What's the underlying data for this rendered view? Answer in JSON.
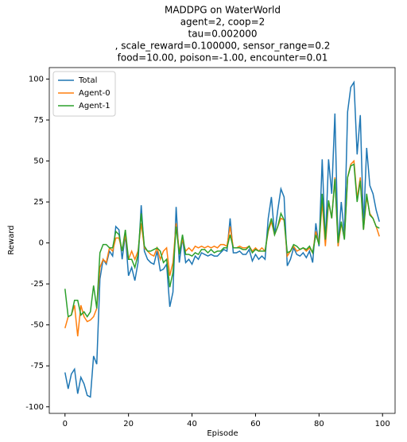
{
  "chart_data": {
    "type": "line",
    "title": [
      "MADDPG on WaterWorld",
      "agent=2, coop=2",
      "tau=0.002000",
      ", scale_reward=0.100000, sensor_range=0.2",
      "food=10.00, poison=-1.00, encounter=0.01"
    ],
    "xlabel": "Episode",
    "ylabel": "Reward",
    "x": [
      0,
      1,
      2,
      3,
      4,
      5,
      6,
      7,
      8,
      9,
      10,
      11,
      12,
      13,
      14,
      15,
      16,
      17,
      18,
      19,
      20,
      21,
      22,
      23,
      24,
      25,
      26,
      27,
      28,
      29,
      30,
      31,
      32,
      33,
      34,
      35,
      36,
      37,
      38,
      39,
      40,
      41,
      42,
      43,
      44,
      45,
      46,
      47,
      48,
      49,
      50,
      51,
      52,
      53,
      54,
      55,
      56,
      57,
      58,
      59,
      60,
      61,
      62,
      63,
      64,
      65,
      66,
      67,
      68,
      69,
      70,
      71,
      72,
      73,
      74,
      75,
      76,
      77,
      78,
      79,
      80,
      81,
      82,
      83,
      84,
      85,
      86,
      87,
      88,
      89,
      90,
      91,
      92,
      93,
      94,
      95,
      96,
      97,
      98,
      99
    ],
    "series": [
      {
        "name": "Total",
        "color": "#1f77b4",
        "values": [
          -79,
          -89,
          -80,
          -77,
          -92,
          -82,
          -86,
          -93,
          -94,
          -69,
          -74,
          -22,
          -10,
          -13,
          -5,
          -8,
          10,
          8,
          -10,
          5,
          -20,
          -15,
          -23,
          -12,
          23,
          -5,
          -10,
          -12,
          -13,
          -5,
          -17,
          -16,
          -13,
          -39,
          -30,
          22,
          -12,
          3,
          -12,
          -10,
          -13,
          -8,
          -10,
          -6,
          -7,
          -8,
          -7,
          -8,
          -8,
          -6,
          -4,
          -5,
          15,
          -6,
          -6,
          -5,
          -7,
          -7,
          -4,
          -11,
          -7,
          -10,
          -8,
          -10,
          15,
          28,
          5,
          20,
          33,
          28,
          -14,
          -10,
          -3,
          -7,
          -8,
          -6,
          -9,
          -5,
          -12,
          12,
          -2,
          51,
          0,
          51,
          30,
          79,
          -2,
          25,
          5,
          80,
          95,
          98,
          54,
          78,
          10,
          58,
          35,
          30,
          20,
          13
        ]
      },
      {
        "name": "Agent-0",
        "color": "#ff7f0e",
        "values": [
          -52,
          -45,
          -44,
          -38,
          -57,
          -38,
          -45,
          -48,
          -47,
          -45,
          -40,
          -15,
          -10,
          -12,
          -3,
          -5,
          3,
          3,
          -5,
          5,
          -10,
          -5,
          -10,
          -5,
          12,
          -3,
          -5,
          -7,
          -8,
          -3,
          -10,
          -5,
          -3,
          -20,
          -12,
          12,
          -5,
          2,
          -5,
          -3,
          -5,
          -2,
          -3,
          -2,
          -3,
          -2,
          -3,
          -2,
          -3,
          -1,
          -1,
          -2,
          10,
          -3,
          -3,
          -2,
          -3,
          -3,
          -2,
          -5,
          -3,
          -5,
          -3,
          -5,
          7,
          13,
          5,
          10,
          15,
          14,
          -8,
          -5,
          -2,
          -5,
          -4,
          -3,
          -5,
          -3,
          -6,
          7,
          -1,
          25,
          -2,
          25,
          15,
          40,
          -2,
          12,
          3,
          40,
          48,
          50,
          27,
          40,
          8,
          28,
          18,
          15,
          10,
          4
        ]
      },
      {
        "name": "Agent-1",
        "color": "#2ca02c",
        "values": [
          -28,
          -45,
          -44,
          -35,
          -35,
          -44,
          -42,
          -45,
          -42,
          -26,
          -40,
          -6,
          -1,
          -1,
          -3,
          -3,
          7,
          5,
          -5,
          8,
          -10,
          -10,
          -15,
          -7,
          18,
          -2,
          -5,
          -5,
          -4,
          -3,
          -5,
          -12,
          -10,
          -27,
          -18,
          10,
          -7,
          5,
          -7,
          -7,
          -8,
          -6,
          -7,
          -4,
          -4,
          -6,
          -4,
          -6,
          -5,
          -5,
          -3,
          -3,
          5,
          -3,
          -3,
          -3,
          -4,
          -4,
          -2,
          -6,
          -4,
          -5,
          -5,
          -5,
          8,
          15,
          5,
          10,
          18,
          14,
          -6,
          -5,
          -1,
          -2,
          -4,
          -3,
          -4,
          -2,
          -6,
          5,
          -1,
          30,
          2,
          26,
          15,
          39,
          0,
          13,
          2,
          40,
          47,
          48,
          25,
          38,
          8,
          30,
          17,
          15,
          10,
          9
        ]
      }
    ],
    "xlim": [
      -4.95,
      103.95
    ],
    "xticks": [
      0,
      20,
      40,
      60,
      80,
      100
    ],
    "ylim": [
      -104,
      107
    ],
    "yticks": [
      -100,
      -75,
      -50,
      -25,
      0,
      25,
      50,
      75,
      100
    ],
    "legend": "upper left"
  }
}
